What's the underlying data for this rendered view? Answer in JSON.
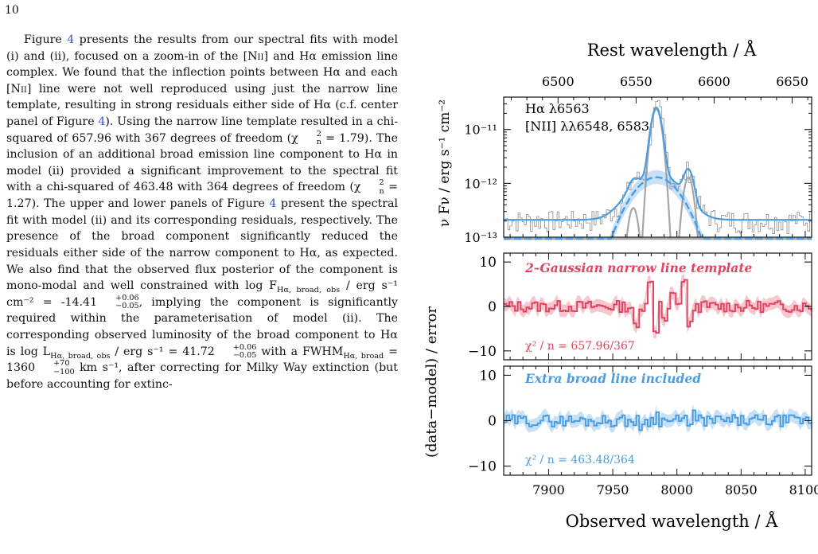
{
  "page": {
    "number": "10"
  },
  "text": {
    "p1_a": "Figure ",
    "fig_ref": "4",
    "p1_b": " presents the results from our spectral fits with model (i) and (ii), focused on a zoom-in of the [N",
    "p1_c": "] and Hα emission line complex. We found that the inflection points between Hα and each [N",
    "p1_d": "] line were not well reproduced using just the narrow line template, resulting in strong residuals either side of Hα (c.f. center panel of Figure ",
    "p1_e": "). Using the narrow line template resulted in a chi-squared of 657.96 with 367 degrees of freedom (χ",
    "p1_f": " = 1.79). The inclusion of an additional broad emission line component to Hα in model (ii) provided a significant improvement to the spectral fit with a chi-squared of 463.48 with 364 degrees of freedom (χ",
    "p1_g": " = 1.27). The upper and lower panels of Figure ",
    "p1_h": " present the spectral fit with model (ii) and its corresponding residuals, respectively. The presence of the broad component significantly reduced the residuals either side of the narrow component to Hα, as expected. We also find that the observed flux posterior of the component is mono-modal and well constrained with  log F",
    "p1_i": " / erg s⁻¹ cm⁻² = -14.41",
    "p1_j": ",  implying the component is significantly required within the parameterisation of model (ii).  The corresponding observed luminosity of the broad component to Hα  is  log L",
    "p1_k": " / erg s⁻¹ = 41.72",
    "p1_l": "  with  a  FWHM",
    "p1_m": " = 1360",
    "p1_n": " km s⁻¹, after correcting for Milky Way extinction (but before accounting for extinc-",
    "nii_roman": "ii",
    "chi_sub": "n",
    "chi_sup": "2",
    "sub_flux": "Hα, broad, obs",
    "sub_fwhm": "Hα, broad",
    "err1_up": "+0.06",
    "err1_dn": "−0.05",
    "err2_up": "+0.06",
    "err2_dn": "−0.05",
    "err3_up": "+70",
    "err3_dn": "−100"
  },
  "figure": {
    "legend_line1": "Hα λ6563",
    "legend_line2": "[NII] λλ6548, 6583",
    "mid_label": "2–Gaussian narrow line template",
    "mid_chi": "χ² / n = 657.96/367",
    "bot_label": "Extra broad line included",
    "bot_chi": "χ² / n = 463.48/364",
    "colors": {
      "model_blue": "#4a9de0",
      "narrow_red": "#e0445f",
      "component_grey": "#a6a6a6",
      "data_grey": "#8c8c8c"
    }
  },
  "chart_data": {
    "type": "line",
    "top_xlabel": "Rest wavelength / Å",
    "xlabel": "Observed wavelength / Å",
    "ylabel_top": "ν Fν / erg s⁻¹ cm⁻²",
    "ylabel_residual": "(data−model) / error",
    "xlim": [
      7865,
      8105
    ],
    "xticks": [
      7900,
      7950,
      8000,
      8050,
      8100
    ],
    "top_xticks": [
      6500,
      6550,
      6600,
      6650
    ],
    "top_panel": {
      "yscale": "log",
      "ylim": [
        1e-13,
        4e-11
      ],
      "yticks": [
        "10⁻¹³",
        "10⁻¹²",
        "10⁻¹¹"
      ],
      "continuum": 2.1e-13,
      "lines": [
        {
          "name": "[NII] 6548",
          "observed": 7966,
          "peak": 3.5e-13,
          "sigma": 3.2
        },
        {
          "name": "Hα 6563",
          "observed": 7984,
          "peak": 2.4e-11,
          "sigma": 3.3
        },
        {
          "name": "[NII] 6583",
          "observed": 8009,
          "peak": 1.3e-12,
          "sigma": 3.2
        }
      ],
      "broad_component": {
        "center": 7984,
        "peak": 1.3e-12,
        "fwhm_kms": 1360
      }
    },
    "residual_panels": [
      {
        "series": "narrow line template",
        "ylim": [
          -12,
          12
        ],
        "yticks": [
          -10,
          0,
          10
        ],
        "chi2": 657.96,
        "dof": 367
      },
      {
        "series": "extra broad line",
        "ylim": [
          -12,
          12
        ],
        "yticks": [
          -10,
          0,
          10
        ],
        "chi2": 463.48,
        "dof": 364
      }
    ]
  }
}
